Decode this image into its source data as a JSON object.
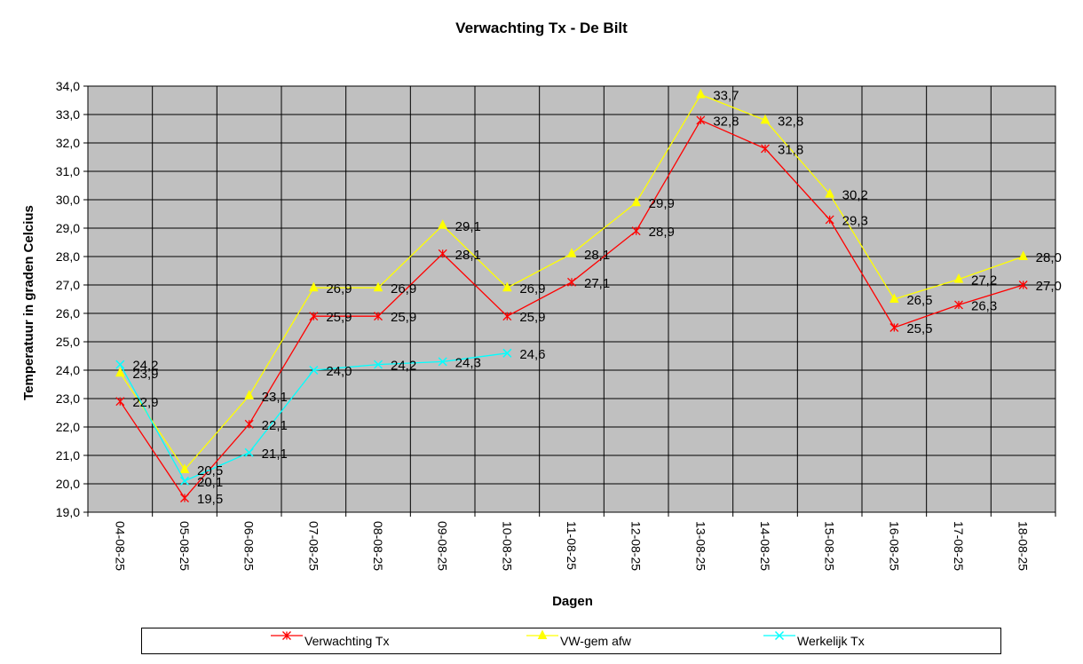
{
  "chart_data": {
    "type": "line",
    "title": "Verwachting Tx - De Bilt",
    "xlabel": "Dagen",
    "ylabel": "Temperatuur in graden Celcius",
    "ylim": [
      19.0,
      34.0
    ],
    "ytick_step": 1.0,
    "grid": true,
    "legend_position": "bottom",
    "plot_background": "#c0c0c0",
    "categories": [
      "04-08-25",
      "05-08-25",
      "06-08-25",
      "07-08-25",
      "08-08-25",
      "09-08-25",
      "10-08-25",
      "11-08-25",
      "12-08-25",
      "13-08-25",
      "14-08-25",
      "15-08-25",
      "16-08-25",
      "17-08-25",
      "18-08-25"
    ],
    "series": [
      {
        "name": "Verwachting Tx",
        "color": "#ff0000",
        "marker": "asterisk",
        "values": [
          22.9,
          19.5,
          22.1,
          25.9,
          25.9,
          28.1,
          25.9,
          27.1,
          28.9,
          32.8,
          31.8,
          29.3,
          25.5,
          26.3,
          27.0
        ],
        "labels": [
          "22,9",
          "19,5",
          "22,1",
          "25,9",
          "25,9",
          "28,1",
          "25,9",
          "27,1",
          "28,9",
          "32,8",
          "31,8",
          "29,3",
          "25,5",
          "26,3",
          "27,0"
        ]
      },
      {
        "name": "VW-gem afw",
        "color": "#ffff00",
        "marker": "triangle",
        "values": [
          23.9,
          20.5,
          23.1,
          26.9,
          26.9,
          29.1,
          26.9,
          28.1,
          29.9,
          33.7,
          32.8,
          30.2,
          26.5,
          27.2,
          28.0
        ],
        "labels": [
          "23,9",
          "20,5",
          "23,1",
          "26,9",
          "26,9",
          "29,1",
          "26,9",
          "28,1",
          "29,9",
          "33,7",
          "32,8",
          "30,2",
          "26,5",
          "27,2",
          "28,0"
        ]
      },
      {
        "name": "Werkelijk Tx",
        "color": "#00ffff",
        "marker": "x",
        "values": [
          24.2,
          20.1,
          21.1,
          24.0,
          24.2,
          24.3,
          24.6,
          null,
          null,
          null,
          null,
          null,
          null,
          null,
          null
        ],
        "labels": [
          "24,2",
          "20,1",
          "21,1",
          "24,0",
          "24,2",
          "24,3",
          "24,6",
          null,
          null,
          null,
          null,
          null,
          null,
          null,
          null
        ]
      }
    ]
  }
}
